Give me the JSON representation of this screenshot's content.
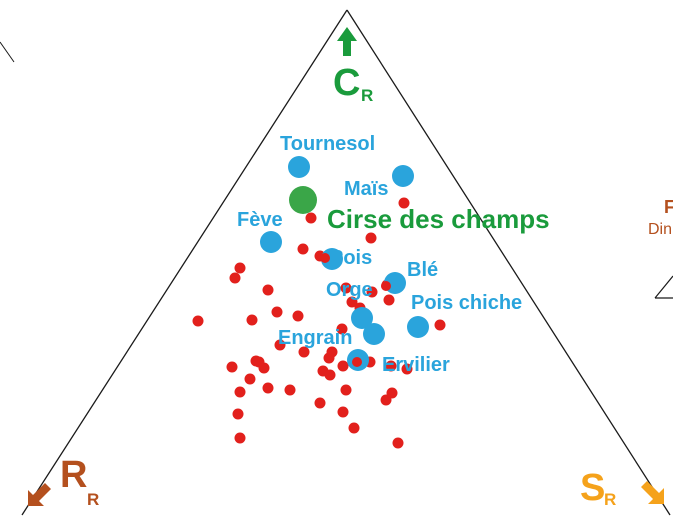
{
  "colors": {
    "crop": "#2aa4dc",
    "weed": "#3aa648",
    "points": "#e2201c",
    "competitor": "#1a9b3c",
    "ruderal": "#b4501e",
    "stress": "#f5a21b",
    "edges": "#1a1a1a"
  },
  "corners": {
    "competitor": {
      "letter": "C",
      "sub": "R",
      "arrow": "up-arrow-icon"
    },
    "ruderal": {
      "letter": "R",
      "sub": "R",
      "arrow": "down-left-arrow-icon"
    },
    "stress": {
      "letter": "S",
      "sub": "R",
      "arrow": "down-right-arrow-icon"
    }
  },
  "edge_fragments": {
    "top": "F",
    "bottom": "Din"
  },
  "crops": [
    {
      "label": "Tournesol"
    },
    {
      "label": "Maïs"
    },
    {
      "label": "Fève"
    },
    {
      "label": "Pois"
    },
    {
      "label": "Blé"
    },
    {
      "label": "Orge"
    },
    {
      "label": "Pois chiche"
    },
    {
      "label": "Engrain"
    },
    {
      "label": "Ervilier"
    }
  ],
  "weed": {
    "label": "Cirse des champs"
  }
}
